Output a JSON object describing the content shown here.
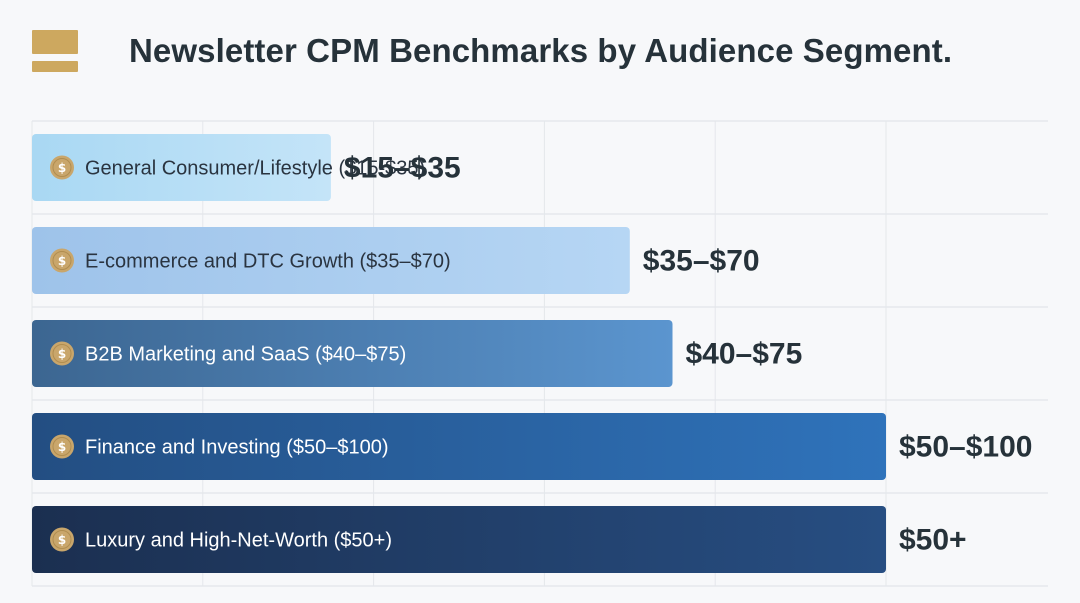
{
  "title": "Newsletter CPM Benchmarks by Audience Segment.",
  "logo": {
    "icon": "stacked-bars-logo",
    "color": "#cda85f"
  },
  "chart_data": {
    "type": "bar",
    "orientation": "horizontal",
    "title": "Newsletter CPM Benchmarks by Audience Segment.",
    "xlabel": "",
    "ylabel": "",
    "grid": true,
    "unit": "USD CPM",
    "categories": [
      "General Consumer/Lifestyle ($15-$35)",
      "E-commerce and DTC Growth ($35–$70)",
      "B2B Marketing and SaaS ($40–$75)",
      "Finance and Investing ($50–$100)",
      "Luxury and High-Net-Worth ($50+)"
    ],
    "value_labels": [
      "$15–$35",
      "$35–$70",
      "$40–$75",
      "$50–$100",
      "$50+"
    ],
    "values": [
      35,
      70,
      75,
      100,
      100
    ],
    "colors": [
      [
        "#a9d8f3",
        "#c4e4f8"
      ],
      [
        "#9ec3ea",
        "#b6d6f4"
      ],
      [
        "#3c6691",
        "#5b95cf"
      ],
      [
        "#234e82",
        "#2f73bb"
      ],
      [
        "#1b2f50",
        "#274e82"
      ]
    ],
    "label_colors": [
      "#2a3440",
      "#2a3440",
      "#ffffff",
      "#ffffff",
      "#ffffff"
    ],
    "coin_color": "#c9a66b",
    "coin_glyph": "$"
  }
}
